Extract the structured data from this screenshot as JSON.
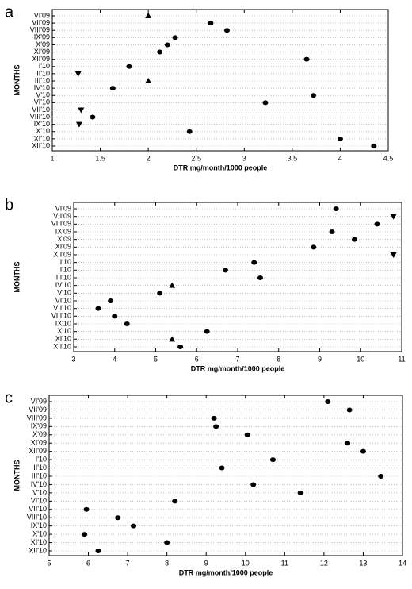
{
  "chart_data": [
    {
      "type": "dot",
      "panel_label": "a",
      "categories": [
        "VI'09",
        "VII'09",
        "VIII'09",
        "IX'09",
        "X'09",
        "XI'09",
        "XII'09",
        "I'10",
        "II'10",
        "III'10",
        "IV'10",
        "V'10",
        "VI'10",
        "VII'10",
        "VIII'10",
        "IX'10",
        "X'10",
        "XI'10",
        "XII'10"
      ],
      "values": [
        2.0,
        2.65,
        2.82,
        2.28,
        2.2,
        2.12,
        3.65,
        1.8,
        1.27,
        2.0,
        1.63,
        3.72,
        3.22,
        1.3,
        1.42,
        1.28,
        2.43,
        4.0,
        4.35
      ],
      "markers": [
        "triangle-up",
        "circle",
        "circle",
        "circle",
        "circle",
        "circle",
        "circle",
        "circle",
        "triangle-down",
        "triangle-up",
        "circle",
        "circle",
        "circle",
        "triangle-down",
        "circle",
        "triangle-down",
        "circle",
        "circle",
        "circle"
      ],
      "color": "#000000",
      "xlim": [
        1,
        4.5
      ],
      "xticks": [
        1,
        1.5,
        2,
        2.5,
        3,
        3.5,
        4,
        4.5
      ],
      "xlabel": "DTR mg/month/1000 people",
      "ylabel": "MONTHS",
      "grid": true
    },
    {
      "type": "dot",
      "panel_label": "b",
      "categories": [
        "VI'09",
        "VII'09",
        "VIII'09",
        "IX'09",
        "X'09",
        "XI'09",
        "XII'09",
        "I'10",
        "II'10",
        "III'10",
        "IV'10",
        "V'10",
        "VI'10",
        "VII'10",
        "VIII'10",
        "IX'10",
        "X'10",
        "XI'10",
        "XII'10"
      ],
      "values": [
        9.4,
        10.8,
        10.4,
        9.3,
        9.85,
        8.85,
        10.8,
        7.4,
        6.7,
        7.55,
        5.4,
        5.1,
        3.9,
        3.6,
        4.0,
        4.3,
        6.25,
        5.4,
        5.6
      ],
      "markers": [
        "circle",
        "triangle-down",
        "circle",
        "circle",
        "circle",
        "circle",
        "triangle-down",
        "circle",
        "circle",
        "circle",
        "triangle-up",
        "circle",
        "circle",
        "circle",
        "circle",
        "circle",
        "circle",
        "triangle-up",
        "circle"
      ],
      "color": "#000000",
      "xlim": [
        3,
        11
      ],
      "xticks": [
        3,
        4,
        5,
        6,
        7,
        8,
        9,
        10,
        11
      ],
      "xlabel": "DTR mg/month/1000 people",
      "ylabel": "MONTHS",
      "grid": true
    },
    {
      "type": "dot",
      "panel_label": "c",
      "categories": [
        "VI'09",
        "VII'09",
        "VIII'09",
        "IX'09",
        "X'09",
        "XI'09",
        "XII'09",
        "I'10",
        "II'10",
        "III'10",
        "IV'10",
        "V'10",
        "VI'10",
        "VII'10",
        "VIII'10",
        "IX'10",
        "X'10",
        "XI'10",
        "XII'10"
      ],
      "values": [
        12.1,
        12.65,
        9.2,
        9.25,
        10.05,
        12.6,
        13.0,
        10.7,
        9.4,
        13.45,
        10.2,
        11.4,
        8.2,
        5.95,
        6.75,
        7.15,
        5.9,
        8.0,
        6.25
      ],
      "markers": [
        "circle",
        "circle",
        "circle",
        "circle",
        "circle",
        "circle",
        "circle",
        "circle",
        "circle",
        "circle",
        "circle",
        "circle",
        "circle",
        "circle",
        "circle",
        "circle",
        "circle",
        "circle",
        "circle"
      ],
      "color": "#000000",
      "xlim": [
        5,
        14
      ],
      "xticks": [
        5,
        6,
        7,
        8,
        9,
        10,
        11,
        12,
        13,
        14
      ],
      "xlabel": "DTR mg/month/1000 people",
      "ylabel": "MONTHS",
      "grid": true
    }
  ]
}
